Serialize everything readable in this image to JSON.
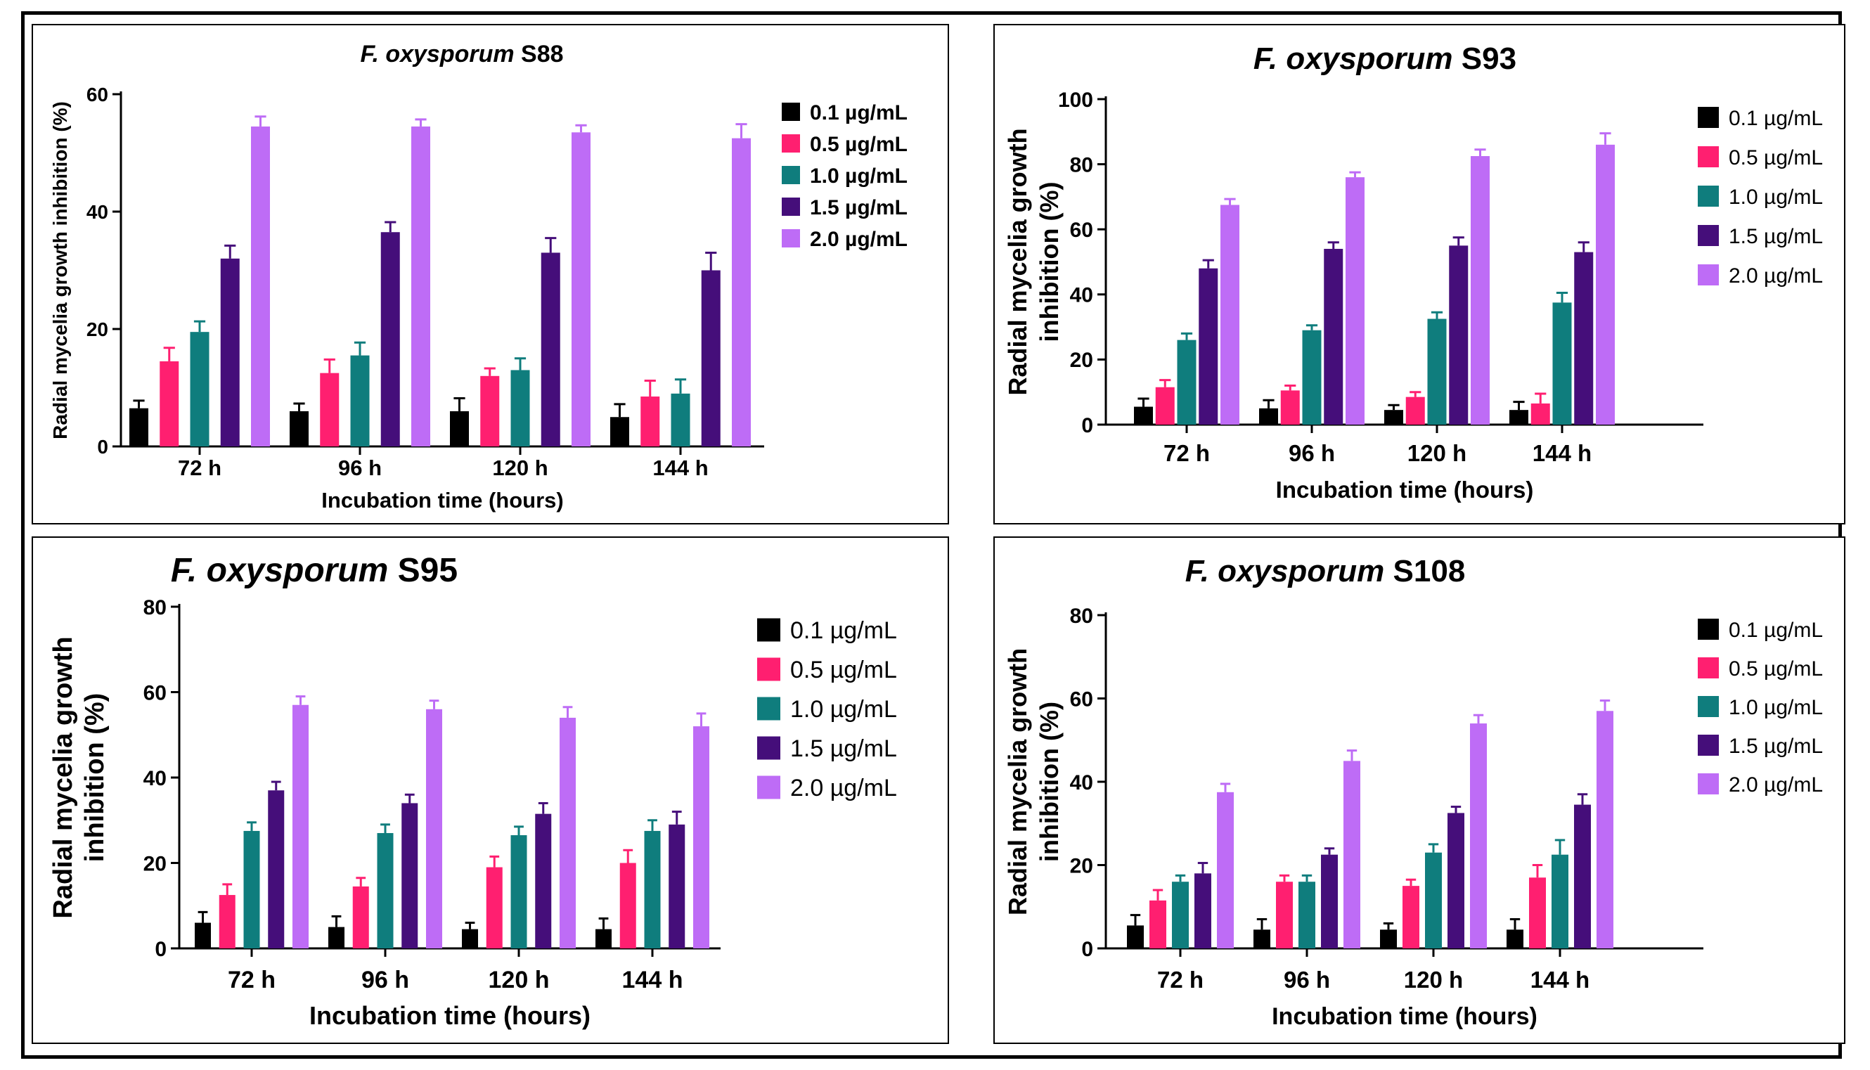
{
  "chart_data": [
    {
      "type": "bar",
      "title": {
        "italic": "F. oxysporum",
        "rest": "S88"
      },
      "xlabel": "Incubation time (hours)",
      "ylabel": [
        "Radial mycelia growth inhibition (%)"
      ],
      "ylim": [
        0,
        60
      ],
      "yticks": [
        0,
        20,
        40,
        60
      ],
      "categories": [
        "72 h",
        "96 h",
        "120 h",
        "144 h"
      ],
      "series": [
        {
          "name": "0.1 µg/mL",
          "color": "#000000",
          "values": [
            6.5,
            6,
            6,
            5
          ],
          "errors": [
            1.3,
            1.3,
            2.2,
            2.2
          ]
        },
        {
          "name": "0.5 µg/mL",
          "color": "#ff1f70",
          "values": [
            14.5,
            12.5,
            12,
            8.5
          ],
          "errors": [
            2.3,
            2.3,
            1.3,
            2.7
          ]
        },
        {
          "name": "1.0 µg/mL",
          "color": "#0f7d7d",
          "values": [
            19.5,
            15.5,
            13,
            9
          ],
          "errors": [
            1.8,
            2.2,
            2,
            2.4
          ]
        },
        {
          "name": "1.5 µg/mL",
          "color": "#450e7a",
          "values": [
            32,
            36.5,
            33,
            30
          ],
          "errors": [
            2.2,
            1.7,
            2.5,
            3
          ]
        },
        {
          "name": "2.0 µg/mL",
          "color": "#be6cf6",
          "values": [
            54.5,
            54.5,
            53.5,
            52.5
          ],
          "errors": [
            1.7,
            1.2,
            1.2,
            2.4
          ]
        }
      ]
    },
    {
      "type": "bar",
      "title": {
        "italic": "F. oxysporum",
        "rest": "S93"
      },
      "xlabel": "Incubation time (hours)",
      "ylabel": [
        "Radial mycelia growth",
        "inhibition (%)"
      ],
      "ylim": [
        0,
        100
      ],
      "yticks": [
        0,
        20,
        40,
        60,
        80,
        100
      ],
      "categories": [
        "72 h",
        "96 h",
        "120 h",
        "144 h"
      ],
      "series": [
        {
          "name": "0.1 µg/mL",
          "color": "#000000",
          "values": [
            5.5,
            5,
            4.5,
            4.5
          ],
          "errors": [
            2.5,
            2.5,
            1.5,
            2.5
          ]
        },
        {
          "name": "0.5 µg/mL",
          "color": "#ff1f70",
          "values": [
            11.5,
            10.5,
            8.5,
            6.5
          ],
          "errors": [
            2.2,
            1.5,
            1.5,
            3
          ]
        },
        {
          "name": "1.0 µg/mL",
          "color": "#0f7d7d",
          "values": [
            26,
            29,
            32.5,
            37.5
          ],
          "errors": [
            2,
            1.5,
            2,
            3
          ]
        },
        {
          "name": "1.5 µg/mL",
          "color": "#450e7a",
          "values": [
            48,
            54,
            55,
            53
          ],
          "errors": [
            2.5,
            2,
            2.5,
            3
          ]
        },
        {
          "name": "2.0 µg/mL",
          "color": "#be6cf6",
          "values": [
            67.5,
            76,
            82.5,
            86
          ],
          "errors": [
            1.8,
            1.5,
            2,
            3.5
          ]
        }
      ]
    },
    {
      "type": "bar",
      "title": {
        "italic": "F. oxysporum",
        "rest": "S95"
      },
      "xlabel": "Incubation time (hours)",
      "ylabel": [
        "Radial mycelia growth",
        "inhibition (%)"
      ],
      "ylim": [
        0,
        80
      ],
      "yticks": [
        0,
        20,
        40,
        60,
        80
      ],
      "categories": [
        "72 h",
        "96 h",
        "120 h",
        "144 h"
      ],
      "series": [
        {
          "name": "0.1 µg/mL",
          "color": "#000000",
          "values": [
            6,
            5,
            4.5,
            4.5
          ],
          "errors": [
            2.5,
            2.5,
            1.5,
            2.5
          ]
        },
        {
          "name": "0.5 µg/mL",
          "color": "#ff1f70",
          "values": [
            12.5,
            14.5,
            19,
            20
          ],
          "errors": [
            2.5,
            2,
            2.5,
            3
          ]
        },
        {
          "name": "1.0 µg/mL",
          "color": "#0f7d7d",
          "values": [
            27.5,
            27,
            26.5,
            27.5
          ],
          "errors": [
            2,
            2,
            2,
            2.5
          ]
        },
        {
          "name": "1.5 µg/mL",
          "color": "#450e7a",
          "values": [
            37,
            34,
            31.5,
            29
          ],
          "errors": [
            2,
            2,
            2.5,
            3
          ]
        },
        {
          "name": "2.0 µg/mL",
          "color": "#be6cf6",
          "values": [
            57,
            56,
            54,
            52
          ],
          "errors": [
            2,
            2,
            2.5,
            3
          ]
        }
      ]
    },
    {
      "type": "bar",
      "title": {
        "italic": "F. oxysporum",
        "rest": "S108"
      },
      "xlabel": "Incubation time (hours)",
      "ylabel": [
        "Radial mycelia growth",
        "inhibition (%)"
      ],
      "ylim": [
        0,
        80
      ],
      "yticks": [
        0,
        20,
        40,
        60,
        80
      ],
      "categories": [
        "72 h",
        "96 h",
        "120 h",
        "144 h"
      ],
      "series": [
        {
          "name": "0.1 µg/mL",
          "color": "#000000",
          "values": [
            5.5,
            4.5,
            4.5,
            4.5
          ],
          "errors": [
            2.5,
            2.5,
            1.5,
            2.5
          ]
        },
        {
          "name": "0.5 µg/mL",
          "color": "#ff1f70",
          "values": [
            11.5,
            16,
            15,
            17
          ],
          "errors": [
            2.5,
            1.5,
            1.5,
            3
          ]
        },
        {
          "name": "1.0 µg/mL",
          "color": "#0f7d7d",
          "values": [
            16,
            16,
            23,
            22.5
          ],
          "errors": [
            1.5,
            1.5,
            2,
            3.5
          ]
        },
        {
          "name": "1.5 µg/mL",
          "color": "#450e7a",
          "values": [
            18,
            22.5,
            32.5,
            34.5
          ],
          "errors": [
            2.5,
            1.5,
            1.5,
            2.5
          ]
        },
        {
          "name": "2.0 µg/mL",
          "color": "#be6cf6",
          "values": [
            37.5,
            45,
            54,
            57
          ],
          "errors": [
            2,
            2.5,
            2,
            2.5
          ]
        }
      ]
    }
  ]
}
